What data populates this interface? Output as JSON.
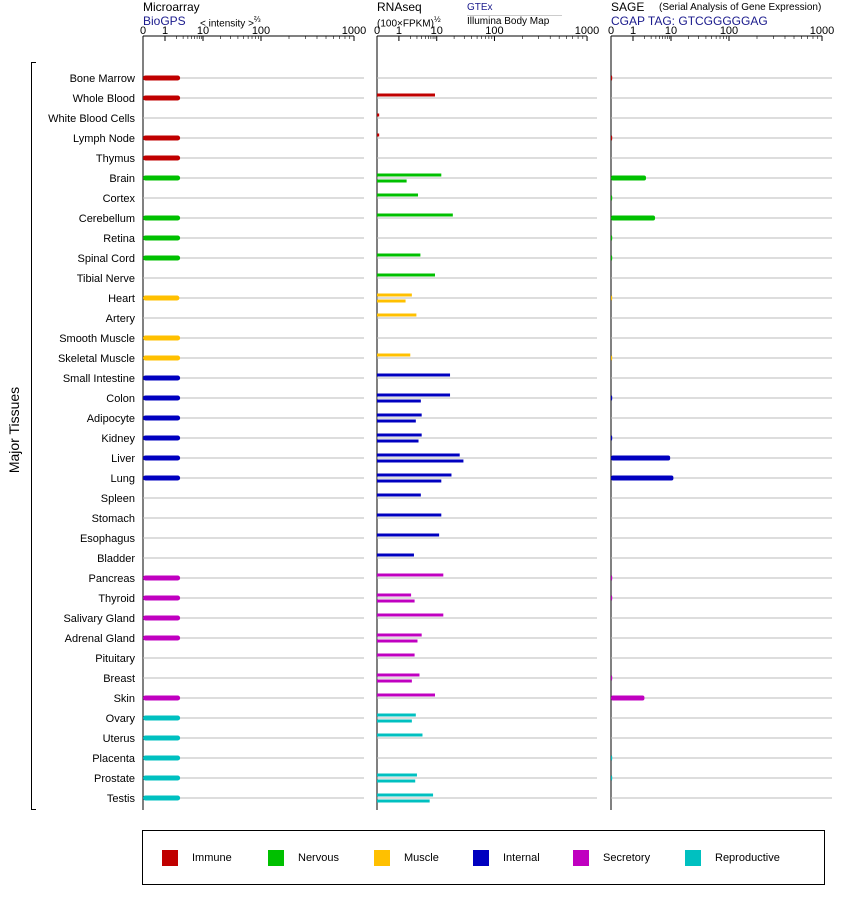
{
  "panels": {
    "microarray": {
      "title": "Microarray",
      "source": "BioGPS",
      "unit": "< intensity >",
      "unit_sup": "⅔"
    },
    "rnaseq": {
      "title": "RNAseq",
      "unit": "(100×FPKM)",
      "unit_sup": "½",
      "source1": "GTEx",
      "source2": "Illumina Body Map"
    },
    "sage": {
      "title": "SAGE",
      "subtitle": "(Serial Analysis of Gene Expression)",
      "tag": "CGAP TAG: GTCGGGGGAG"
    }
  },
  "side_label": "Major Tissues",
  "legend": [
    {
      "label": "Immune",
      "color": "#c00000"
    },
    {
      "label": "Nervous",
      "color": "#00c000"
    },
    {
      "label": "Muscle",
      "color": "#ffc000"
    },
    {
      "label": "Internal",
      "color": "#0000c0"
    },
    {
      "label": "Secretory",
      "color": "#c000c0"
    },
    {
      "label": "Reproductive",
      "color": "#00c0c0"
    }
  ],
  "chart_data": {
    "type": "bar",
    "orientation": "horizontal",
    "x_axis": {
      "ticks": [
        "0",
        "1",
        "10",
        "100",
        "1000"
      ],
      "tick_values": [
        0,
        1,
        10,
        100,
        1000
      ],
      "scale": "sqrt-like (transformed)"
    },
    "categories": [
      "Bone Marrow",
      "Whole Blood",
      "White Blood Cells",
      "Lymph Node",
      "Thymus",
      "Brain",
      "Cortex",
      "Cerebellum",
      "Retina",
      "Spinal Cord",
      "Tibial Nerve",
      "Heart",
      "Artery",
      "Smooth Muscle",
      "Skeletal Muscle",
      "Small Intestine",
      "Colon",
      "Adipocyte",
      "Kidney",
      "Liver",
      "Lung",
      "Spleen",
      "Stomach",
      "Esophagus",
      "Bladder",
      "Pancreas",
      "Thyroid",
      "Salivary Gland",
      "Adrenal Gland",
      "Pituitary",
      "Breast",
      "Skin",
      "Ovary",
      "Uterus",
      "Placenta",
      "Prostate",
      "Testis"
    ],
    "groups": [
      "Immune",
      "Immune",
      "Immune",
      "Immune",
      "Immune",
      "Nervous",
      "Nervous",
      "Nervous",
      "Nervous",
      "Nervous",
      "Nervous",
      "Muscle",
      "Muscle",
      "Muscle",
      "Muscle",
      "Internal",
      "Internal",
      "Internal",
      "Internal",
      "Internal",
      "Internal",
      "Internal",
      "Internal",
      "Internal",
      "Internal",
      "Secretory",
      "Secretory",
      "Secretory",
      "Secretory",
      "Secretory",
      "Secretory",
      "Secretory",
      "Reproductive",
      "Reproductive",
      "Reproductive",
      "Reproductive",
      "Reproductive"
    ],
    "series": [
      {
        "name": "Microarray",
        "values": [
          2.5,
          2.5,
          null,
          2.5,
          2.5,
          2.5,
          null,
          2.5,
          2.5,
          2.5,
          null,
          2.4,
          null,
          2.5,
          2.5,
          2.5,
          2.5,
          2.5,
          2.5,
          2.5,
          2.5,
          null,
          null,
          null,
          null,
          2.5,
          2.5,
          2.5,
          2.5,
          null,
          null,
          2.5,
          2.5,
          2.5,
          2.5,
          2.5,
          2.5
        ]
      },
      {
        "name": "GTEx",
        "values": [
          null,
          9,
          null,
          null,
          null,
          null,
          null,
          null,
          null,
          null,
          null,
          null,
          null,
          null,
          null,
          null,
          null,
          null,
          null,
          null,
          null,
          null,
          null,
          null,
          null,
          null,
          null,
          null,
          null,
          null,
          null,
          null,
          null,
          null,
          null,
          null,
          null
        ]
      },
      {
        "name": "RNAseq",
        "values": [
          [
            null
          ],
          [
            9
          ],
          [
            0.1
          ],
          [
            0.1
          ],
          [
            null
          ],
          [
            12,
            1.6
          ],
          [
            3.2
          ],
          [
            19
          ],
          [
            null
          ],
          [
            3.7
          ],
          [
            9
          ],
          [
            2.2,
            1.5
          ],
          [
            2.9
          ],
          [
            null
          ],
          [
            2
          ],
          [
            17
          ],
          [
            17,
            3.8
          ],
          [
            4,
            2.8
          ],
          [
            4,
            3.3
          ],
          [
            25,
            29
          ],
          [
            18,
            12
          ],
          [
            3.8
          ],
          [
            12
          ],
          [
            11
          ],
          [
            2.5
          ],
          [
            13
          ],
          [
            2.1,
            2.6
          ],
          [
            13
          ],
          [
            4,
            3.1
          ],
          [
            2.6
          ],
          [
            3.5,
            2.2
          ],
          [
            9
          ],
          [
            2.8,
            2.2
          ],
          [
            4.2
          ],
          [
            null
          ],
          [
            3,
            2.7
          ],
          [
            8,
            6.5
          ]
        ]
      },
      {
        "name": "SAGE",
        "values": [
          0.05,
          null,
          null,
          0.05,
          null,
          2.2,
          0.02,
          3.8,
          0.02,
          0.02,
          null,
          0.01,
          null,
          null,
          0.01,
          null,
          0.05,
          null,
          0.05,
          9.5,
          11,
          null,
          null,
          null,
          null,
          0.05,
          0.05,
          null,
          null,
          null,
          0.05,
          2,
          null,
          null,
          0.02,
          0.02,
          null
        ]
      }
    ],
    "xlabel": "",
    "ylabel": "Major Tissues"
  }
}
